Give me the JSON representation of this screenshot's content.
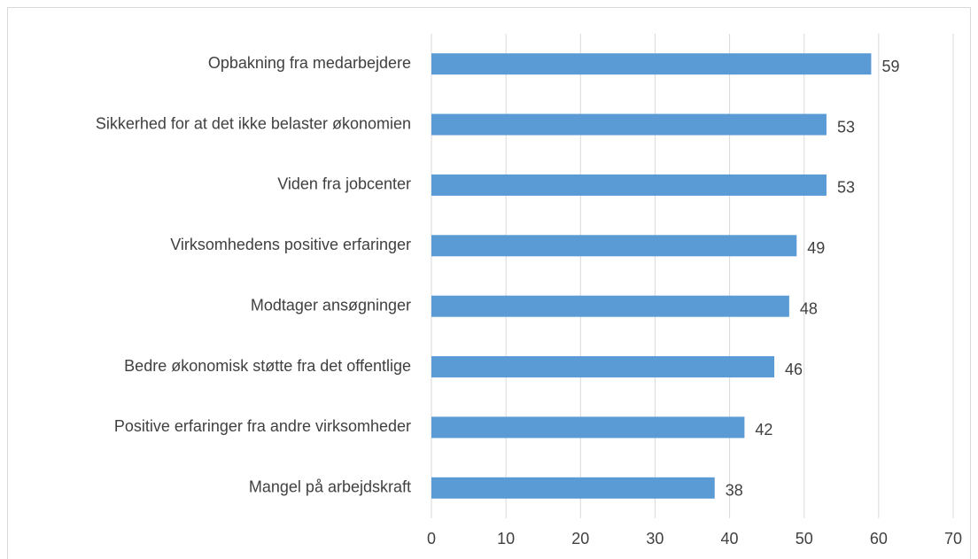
{
  "chart_data": {
    "type": "bar",
    "orientation": "horizontal",
    "categories": [
      "Opbakning fra medarbejdere",
      "Sikkerhed for at det ikke belaster økonomien",
      "Viden fra jobcenter",
      "Virksomhedens positive erfaringer",
      "Modtager ansøgninger",
      "Bedre økonomisk støtte fra det offentlige",
      "Positive erfaringer fra andre virksomheder",
      "Mangel på arbejdskraft"
    ],
    "values": [
      59,
      53,
      53,
      49,
      48,
      46,
      42,
      38
    ],
    "color": "#5b9bd5",
    "xlim": [
      0,
      70
    ],
    "xticks": [
      0,
      10,
      20,
      30,
      40,
      50,
      60,
      70
    ],
    "grid": true
  }
}
